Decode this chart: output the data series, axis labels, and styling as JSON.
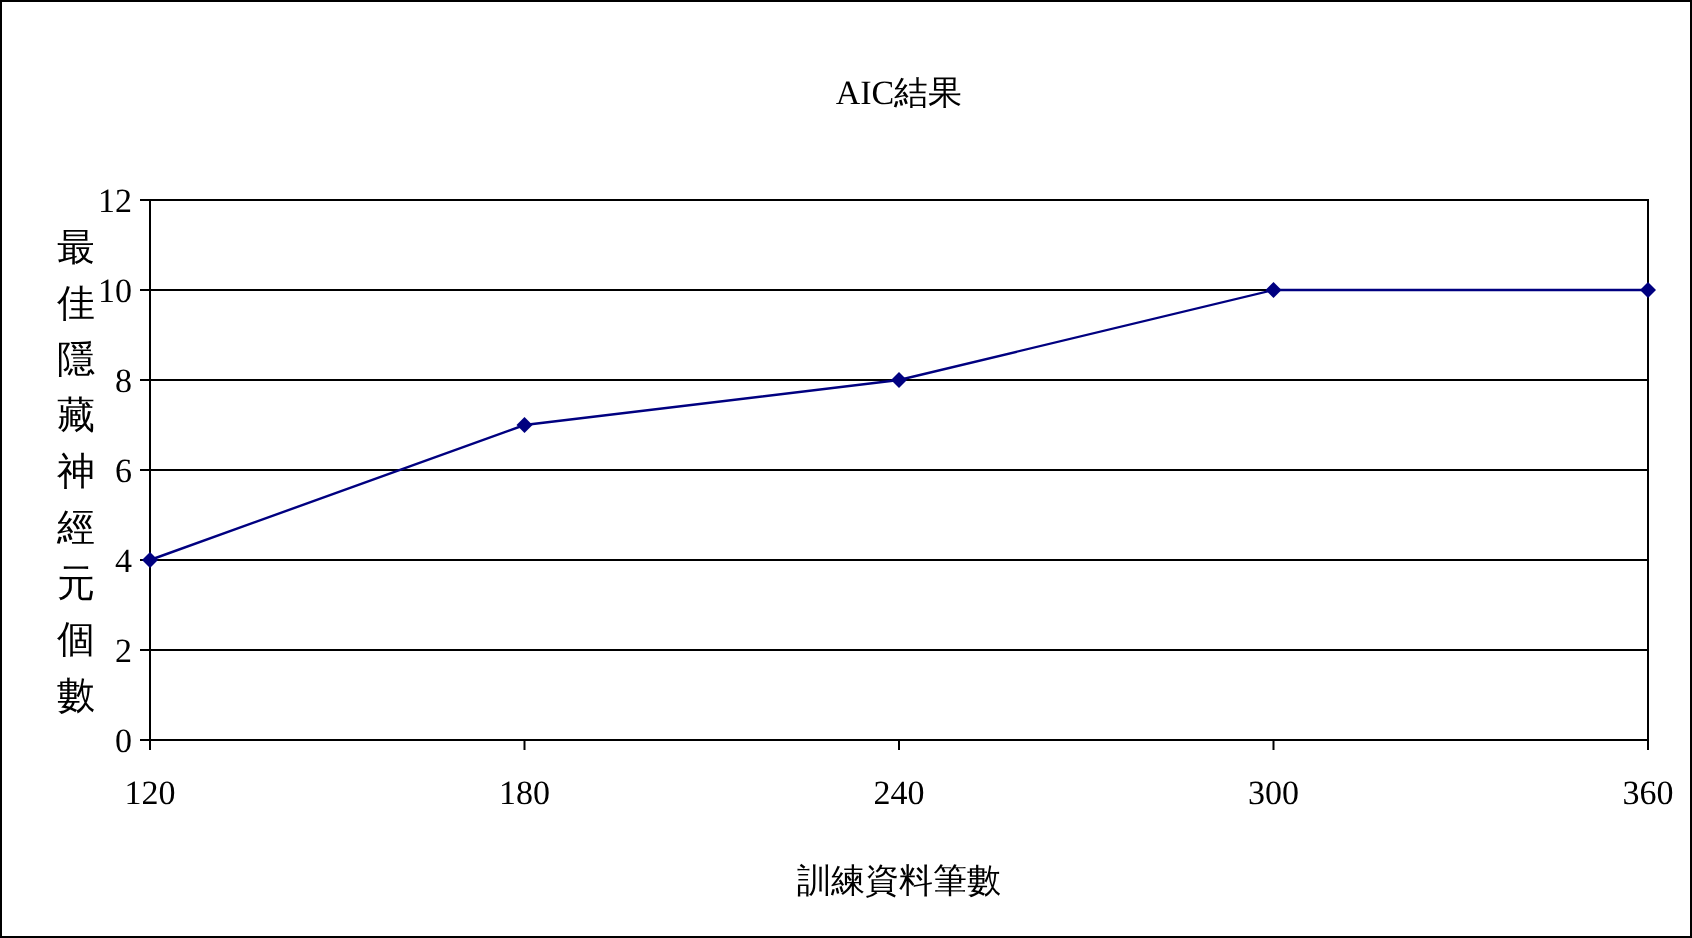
{
  "chart_data": {
    "type": "line",
    "title": "AIC結果",
    "xlabel": "訓練資料筆數",
    "ylabel": "最佳隱藏神經元個數",
    "x": [
      120,
      180,
      240,
      300,
      360
    ],
    "series": [
      {
        "color": "#000080",
        "values": [
          4,
          7,
          8,
          10,
          10
        ]
      }
    ],
    "xlim": [
      120,
      360
    ],
    "xticks": [
      120,
      180,
      240,
      300,
      360
    ],
    "ylim": [
      0,
      12
    ],
    "yticks": [
      0,
      2,
      4,
      6,
      8,
      10,
      12
    ],
    "grid": "y",
    "marker": "diamond",
    "line_style": "solid"
  }
}
